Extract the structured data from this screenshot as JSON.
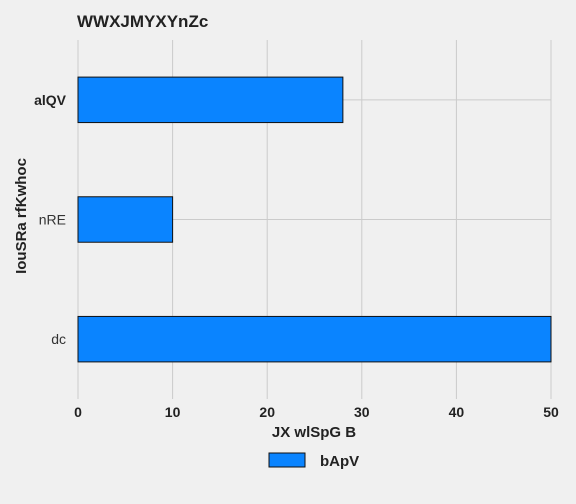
{
  "chart_data": {
    "type": "bar",
    "orientation": "horizontal",
    "title": "WWXJMYXYnZc",
    "xlabel": "JX wlSpG B",
    "ylabel": "IouSRa rfKwhoc",
    "categories": [
      "alQV",
      "nRE",
      "dc"
    ],
    "series": [
      {
        "name": "bApV",
        "values": [
          28,
          10,
          50
        ],
        "color": "#0a84ff"
      }
    ],
    "xlim": [
      0,
      50
    ],
    "xticks": [
      0,
      10,
      20,
      30,
      40,
      50
    ],
    "grid": true,
    "legend": "bottom-center"
  }
}
